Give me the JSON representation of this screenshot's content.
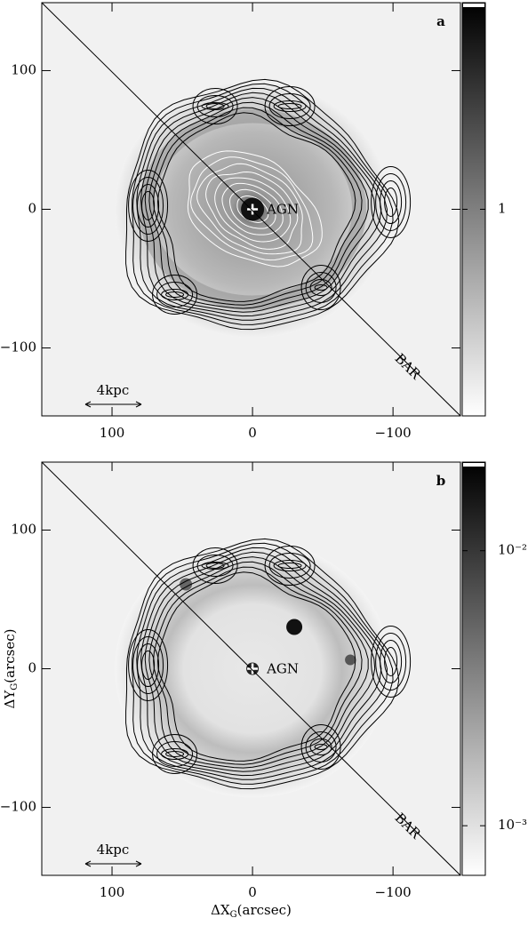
{
  "chart_data": [
    {
      "type": "image",
      "panel_label": "a",
      "xlim": [
        150,
        -148
      ],
      "xticks": [
        100,
        0,
        {
          "value": -100,
          "label": "−100"
        }
      ],
      "ylim": [
        -149,
        149
      ],
      "yticks": [
        100,
        0,
        {
          "value": -100,
          "label": "−100"
        }
      ],
      "colorbar": {
        "scale": "linear",
        "lim": [
          0,
          2
        ],
        "ticks": [
          1
        ]
      },
      "annotations": [
        "AGN",
        "BAR"
      ],
      "scale_bar": "4kpc"
    },
    {
      "type": "image",
      "panel_label": "b",
      "xlim": [
        150,
        -148
      ],
      "xticks": [
        100,
        0,
        {
          "value": -100,
          "label": "−100"
        }
      ],
      "ylim": [
        -149,
        149
      ],
      "yticks": [
        100,
        0,
        {
          "value": -100,
          "label": "−100"
        }
      ],
      "colorbar": {
        "scale": "log",
        "lim": [
          0.00066,
          0.021
        ],
        "ticks": [
          {
            "value": 0.01,
            "label": "10⁻²"
          },
          {
            "value": 0.001,
            "label": "10⁻³"
          }
        ]
      },
      "annotations": [
        "AGN",
        "BAR"
      ],
      "scale_bar": "4kpc",
      "xlabel": [
        "ΔX",
        "G",
        "(arcsec)"
      ],
      "ylabel": [
        "ΔY",
        "G",
        "(arcsec)"
      ]
    }
  ]
}
